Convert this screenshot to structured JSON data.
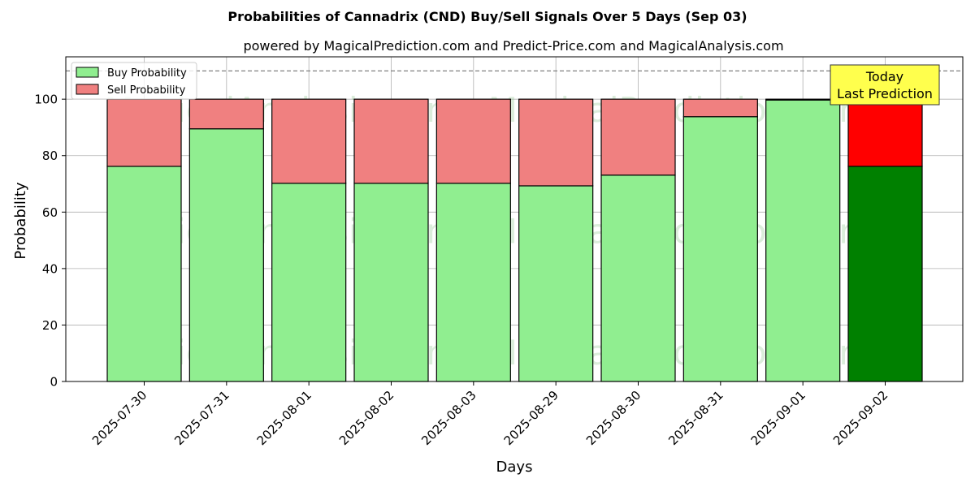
{
  "chart_data": {
    "type": "bar",
    "stacked": true,
    "title": "Probabilities of Cannadrix (CND) Buy/Sell Signals Over 5 Days (Sep 03)",
    "subtitle": "powered by MagicalPrediction.com and Predict-Price.com and MagicalAnalysis.com",
    "xlabel": "Days",
    "ylabel": "Probability",
    "ylim": [
      0,
      115
    ],
    "yticks": [
      0,
      20,
      40,
      60,
      80,
      100
    ],
    "grid": true,
    "legend_position": "top-left",
    "categories": [
      "2025-07-30",
      "2025-07-31",
      "2025-08-01",
      "2025-08-02",
      "2025-08-03",
      "2025-08-29",
      "2025-08-30",
      "2025-08-31",
      "2025-09-01",
      "2025-09-02"
    ],
    "series": [
      {
        "name": "Buy Probability",
        "color": "#90ee90",
        "values": [
          76.2,
          89.5,
          70.2,
          70.2,
          70.2,
          69.3,
          73.1,
          93.8,
          99.7,
          76.2
        ]
      },
      {
        "name": "Sell Probability",
        "color": "#f08080",
        "values": [
          23.8,
          10.5,
          29.8,
          29.8,
          29.8,
          30.7,
          26.9,
          6.2,
          0.3,
          23.8
        ]
      }
    ],
    "highlight": {
      "index": 9,
      "buy_color": "#008000",
      "sell_color": "#ff0000"
    },
    "reference_line": {
      "y": 110,
      "style": "dashed"
    },
    "annotation": {
      "lines": [
        "Today",
        "Last Prediction"
      ],
      "background": "#ffff4d"
    },
    "watermarks": [
      "MagicalAnalysis.com",
      "MagicalPrediction.com"
    ]
  }
}
